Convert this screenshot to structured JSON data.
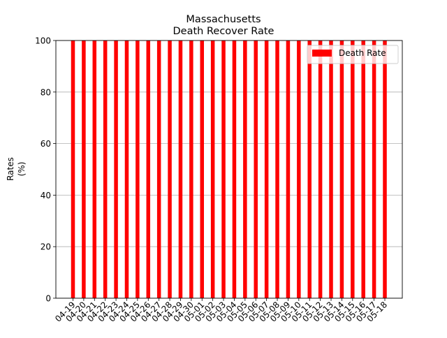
{
  "chart_data": {
    "type": "bar",
    "title": "Massachusetts",
    "subtitle": "Death Recover Rate",
    "xlabel": "",
    "ylabel_line1": "Rates",
    "ylabel_line2": "(%)",
    "ylim": [
      0,
      100
    ],
    "yticks": [
      0,
      20,
      40,
      60,
      80,
      100
    ],
    "grid": "horizontal",
    "legend_position": "top-right",
    "categories": [
      "04-19",
      "04-20",
      "04-21",
      "04-22",
      "04-23",
      "04-24",
      "04-25",
      "04-26",
      "04-27",
      "04-28",
      "04-29",
      "04-30",
      "05-01",
      "05-02",
      "05-03",
      "05-04",
      "05-05",
      "05-06",
      "05-07",
      "05-08",
      "05-09",
      "05-10",
      "05-11",
      "05-12",
      "05-13",
      "05-14",
      "05-15",
      "05-16",
      "05-17",
      "05-18"
    ],
    "series": [
      {
        "name": "Death Rate",
        "color": "#ff0000",
        "values": [
          100,
          100,
          100,
          100,
          100,
          100,
          100,
          100,
          100,
          100,
          100,
          100,
          100,
          100,
          100,
          100,
          100,
          100,
          100,
          100,
          100,
          100,
          100,
          100,
          100,
          100,
          100,
          100,
          100,
          100
        ]
      }
    ]
  }
}
